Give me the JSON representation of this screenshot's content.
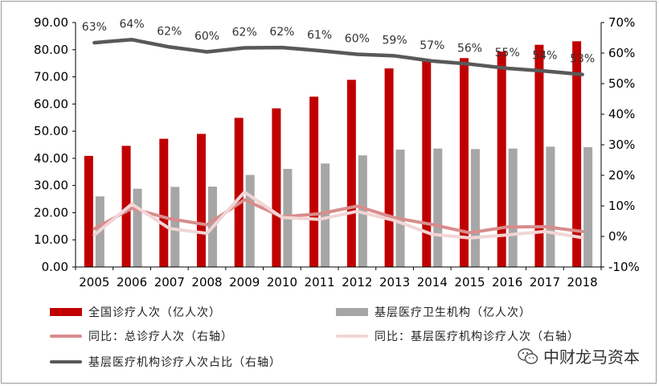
{
  "chart_data": {
    "type": "bar",
    "categories": [
      "2005",
      "2006",
      "2007",
      "2008",
      "2009",
      "2010",
      "2011",
      "2012",
      "2013",
      "2014",
      "2015",
      "2016",
      "2017",
      "2018"
    ],
    "y_left": {
      "min": 0,
      "max": 90,
      "step": 10,
      "tick_labels": [
        "0.00",
        "10.00",
        "20.00",
        "30.00",
        "40.00",
        "50.00",
        "60.00",
        "70.00",
        "80.00",
        "90.00"
      ]
    },
    "y_right": {
      "min": -10,
      "max": 70,
      "step": 10,
      "tick_labels": [
        "-10%",
        "0%",
        "10%",
        "20%",
        "30%",
        "40%",
        "50%",
        "60%",
        "70%"
      ]
    },
    "grid": false,
    "legend_position": "bottom",
    "series": [
      {
        "name": "全国诊疗人次（亿人次）",
        "kind": "bar",
        "axis": "left",
        "color": "#c00000",
        "values": [
          40.9,
          44.6,
          47.2,
          49.0,
          54.9,
          58.4,
          62.7,
          68.9,
          73.1,
          76.0,
          76.9,
          79.3,
          81.8,
          83.1
        ]
      },
      {
        "name": "基层医疗卫生机构（亿人次）",
        "kind": "bar",
        "axis": "left",
        "color": "#a6a6a6",
        "values": [
          26.0,
          28.8,
          29.5,
          29.6,
          33.9,
          36.1,
          38.1,
          41.1,
          43.2,
          43.6,
          43.4,
          43.6,
          44.3,
          44.1
        ]
      },
      {
        "name": "同比：总诊疗人次（右轴）",
        "kind": "line",
        "axis": "right",
        "color": "#d98c8c",
        "values": [
          2.5,
          9.2,
          5.8,
          3.8,
          12.0,
          6.4,
          7.4,
          9.9,
          6.1,
          3.9,
          1.2,
          3.1,
          3.2,
          1.6
        ]
      },
      {
        "name": "同比：基层医疗机构诊疗人次（右轴）",
        "kind": "line",
        "axis": "right",
        "color": "#f2d5d5",
        "values": [
          0.5,
          10.6,
          2.6,
          1.0,
          14.5,
          6.2,
          5.6,
          8.2,
          5.2,
          0.7,
          -0.5,
          0.5,
          1.6,
          -0.4
        ]
      },
      {
        "name": "基层医疗机构诊疗人次占比（右轴）",
        "kind": "line",
        "axis": "right",
        "color": "#595959",
        "values": [
          63.4,
          64.4,
          62.0,
          60.4,
          61.7,
          61.8,
          60.8,
          59.6,
          59.1,
          57.4,
          56.4,
          55.0,
          54.1,
          53.0
        ],
        "data_labels": [
          "63%",
          "64%",
          "62%",
          "60%",
          "62%",
          "62%",
          "61%",
          "60%",
          "59%",
          "57%",
          "56%",
          "55%",
          "54%",
          "53%"
        ]
      }
    ]
  },
  "watermark": {
    "text": "中财龙马资本",
    "icon": "wechat-icon"
  }
}
